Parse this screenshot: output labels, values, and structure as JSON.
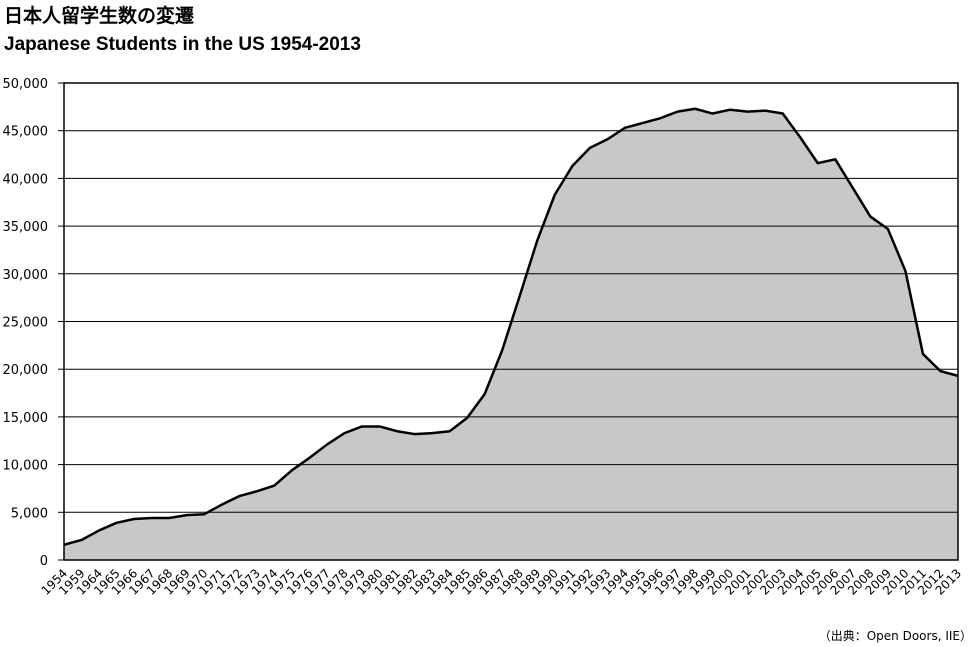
{
  "chart_data": {
    "type": "area",
    "title": "日本人留学生数の変遷",
    "subtitle": "Japanese Students in the US 1954-2013",
    "source": "（出典：Open Doors, IIE）",
    "categories": [
      "1954",
      "1959",
      "1964",
      "1965",
      "1966",
      "1967",
      "1968",
      "1969",
      "1970",
      "1971",
      "1972",
      "1973",
      "1974",
      "1975",
      "1976",
      "1977",
      "1978",
      "1979",
      "1980",
      "1981",
      "1982",
      "1983",
      "1984",
      "1985",
      "1986",
      "1987",
      "1988",
      "1989",
      "1990",
      "1991",
      "1992",
      "1993",
      "1994",
      "1995",
      "1996",
      "1997",
      "1998",
      "1999",
      "2000",
      "2001",
      "2002",
      "2003",
      "2004",
      "2005",
      "2006",
      "2007",
      "2008",
      "2009",
      "2010",
      "2011",
      "2012",
      "2013"
    ],
    "values": [
      1600,
      2100,
      3100,
      3900,
      4300,
      4400,
      4400,
      4700,
      4800,
      5800,
      6700,
      7200,
      7800,
      9400,
      10700,
      12100,
      13300,
      14000,
      14000,
      13500,
      13200,
      13300,
      13500,
      14900,
      17400,
      22000,
      27700,
      33500,
      38300,
      41300,
      43200,
      44100,
      45300,
      45800,
      46300,
      47000,
      47300,
      46800,
      47200,
      47000,
      47100,
      46800,
      44300,
      41600,
      42000,
      39000,
      36000,
      34700,
      30300,
      21600,
      19800,
      19300
    ],
    "color": "#c8c8c8",
    "line_color": "#000000",
    "ylim": [
      0,
      50000
    ],
    "yticks": [
      0,
      {
        "value": 5000,
        "label": "5,000"
      },
      {
        "value": 10000,
        "label": "10,000"
      },
      {
        "value": 15000,
        "label": "15,000"
      },
      {
        "value": 20000,
        "label": "20,000"
      },
      {
        "value": 25000,
        "label": "25,000"
      },
      {
        "value": 30000,
        "label": "30,000"
      },
      {
        "value": 35000,
        "label": "35,000"
      },
      {
        "value": 40000,
        "label": "40,000"
      },
      {
        "value": 45000,
        "label": "45,000"
      },
      {
        "value": 50000,
        "label": "50,000"
      }
    ],
    "grid": true
  }
}
